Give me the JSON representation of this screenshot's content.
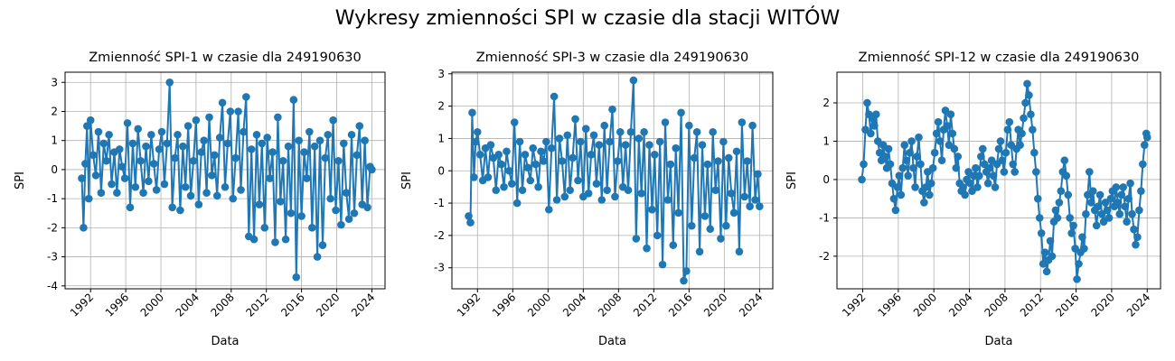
{
  "figure": {
    "suptitle": "Wykresy zmienności SPI w czasie dla stacji WITÓW",
    "line_color": "#1f77b4",
    "grid_color": "#b0b0b0"
  },
  "chart_data": [
    {
      "type": "line",
      "title": "Zmienność SPI-1 w czasie dla 249190630",
      "xlabel": "Data",
      "ylabel": "SPI",
      "xlim": [
        1989.1,
        2025.5
      ],
      "ylim": [
        -4.1,
        3.35
      ],
      "xticks": [
        1992,
        1996,
        2000,
        2004,
        2008,
        2012,
        2016,
        2020,
        2024
      ],
      "yticks": [
        -4,
        -3,
        -2,
        -1,
        0,
        1,
        2,
        3
      ],
      "grid": true,
      "marker": "circle",
      "series": [
        {
          "x": [
            1991.0,
            1991.2,
            1991.4,
            1991.6,
            1991.8,
            1992.0,
            1992.3,
            1992.6,
            1992.9,
            1993.2,
            1993.5,
            1993.8,
            1994.1,
            1994.4,
            1994.7,
            1995.0,
            1995.3,
            1995.6,
            1995.9,
            1996.2,
            1996.5,
            1996.8,
            1997.1,
            1997.4,
            1997.7,
            1998.0,
            1998.3,
            1998.6,
            1998.9,
            1999.2,
            1999.5,
            1999.8,
            2000.1,
            2000.4,
            2000.7,
            2001.0,
            2001.3,
            2001.6,
            2001.9,
            2002.2,
            2002.5,
            2002.8,
            2003.1,
            2003.4,
            2003.7,
            2004.0,
            2004.3,
            2004.6,
            2004.9,
            2005.2,
            2005.5,
            2005.8,
            2006.1,
            2006.4,
            2006.7,
            2007.0,
            2007.3,
            2007.6,
            2007.9,
            2008.2,
            2008.5,
            2008.8,
            2009.1,
            2009.4,
            2009.7,
            2010.0,
            2010.3,
            2010.6,
            2010.9,
            2011.2,
            2011.5,
            2011.8,
            2012.1,
            2012.4,
            2012.7,
            2013.0,
            2013.3,
            2013.6,
            2013.9,
            2014.2,
            2014.5,
            2014.8,
            2015.1,
            2015.4,
            2015.7,
            2016.0,
            2016.3,
            2016.6,
            2016.9,
            2017.2,
            2017.5,
            2017.8,
            2018.1,
            2018.4,
            2018.7,
            2019.0,
            2019.3,
            2019.6,
            2019.9,
            2020.2,
            2020.5,
            2020.8,
            2021.1,
            2021.4,
            2021.7,
            2022.0,
            2022.3,
            2022.6,
            2022.9,
            2023.2,
            2023.5,
            2023.8,
            2024.0
          ],
          "y": [
            -0.3,
            -2.0,
            0.2,
            1.5,
            -1.0,
            1.7,
            0.5,
            -0.2,
            1.3,
            -0.8,
            0.9,
            0.3,
            1.2,
            -0.5,
            0.6,
            -0.8,
            0.7,
            0.1,
            -0.3,
            1.6,
            -1.3,
            0.9,
            -0.6,
            1.4,
            0.3,
            -0.8,
            0.8,
            -0.4,
            1.2,
            0.2,
            -0.7,
            0.7,
            1.3,
            -0.5,
            0.9,
            3.0,
            -1.3,
            0.4,
            1.2,
            -1.4,
            0.8,
            -0.6,
            1.5,
            -0.9,
            0.3,
            1.7,
            -1.2,
            0.6,
            1.0,
            -0.8,
            1.8,
            -0.2,
            0.5,
            -0.9,
            1.1,
            2.3,
            -0.6,
            0.9,
            2.0,
            -1.0,
            0.4,
            2.0,
            -0.7,
            1.3,
            2.5,
            -2.3,
            0.7,
            -2.4,
            1.2,
            -1.2,
            0.9,
            -2.0,
            1.1,
            -0.3,
            0.6,
            -2.5,
            1.8,
            -1.1,
            0.3,
            -2.4,
            0.8,
            -1.5,
            2.4,
            -3.7,
            1.0,
            -1.6,
            0.6,
            -0.3,
            1.3,
            -2.0,
            0.8,
            -3.0,
            1.0,
            -2.6,
            0.4,
            1.2,
            -1.0,
            1.7,
            -1.4,
            0.3,
            -1.9,
            0.9,
            -0.8,
            -1.7,
            1.2,
            -1.5,
            0.5,
            1.5,
            -1.2,
            1.0,
            -1.3,
            0.1,
            0.0
          ]
        }
      ]
    },
    {
      "type": "line",
      "title": "Zmienność SPI-3 w czasie dla 249190630",
      "xlabel": "Data",
      "ylabel": "SPI",
      "xlim": [
        1989.1,
        2025.5
      ],
      "ylim": [
        -3.65,
        3.05
      ],
      "xticks": [
        1992,
        1996,
        2000,
        2004,
        2008,
        2012,
        2016,
        2020,
        2024
      ],
      "yticks": [
        -3,
        -2,
        -1,
        0,
        1,
        2,
        3
      ],
      "grid": true,
      "marker": "circle",
      "series": [
        {
          "x": [
            1991.0,
            1991.2,
            1991.4,
            1991.6,
            1991.8,
            1992.0,
            1992.3,
            1992.6,
            1992.9,
            1993.2,
            1993.5,
            1993.8,
            1994.1,
            1994.4,
            1994.7,
            1995.0,
            1995.3,
            1995.6,
            1995.9,
            1996.2,
            1996.5,
            1996.8,
            1997.1,
            1997.4,
            1997.7,
            1998.0,
            1998.3,
            1998.6,
            1998.9,
            1999.2,
            1999.5,
            1999.8,
            2000.1,
            2000.4,
            2000.7,
            2001.0,
            2001.3,
            2001.6,
            2001.9,
            2002.2,
            2002.5,
            2002.8,
            2003.1,
            2003.4,
            2003.7,
            2004.0,
            2004.3,
            2004.6,
            2004.9,
            2005.2,
            2005.5,
            2005.8,
            2006.1,
            2006.4,
            2006.7,
            2007.0,
            2007.3,
            2007.6,
            2007.9,
            2008.2,
            2008.5,
            2008.8,
            2009.1,
            2009.4,
            2009.7,
            2010.0,
            2010.3,
            2010.6,
            2010.9,
            2011.2,
            2011.5,
            2011.8,
            2012.1,
            2012.4,
            2012.7,
            2013.0,
            2013.3,
            2013.6,
            2013.9,
            2014.2,
            2014.5,
            2014.8,
            2015.1,
            2015.4,
            2015.7,
            2016.0,
            2016.3,
            2016.6,
            2016.9,
            2017.2,
            2017.5,
            2017.8,
            2018.1,
            2018.4,
            2018.7,
            2019.0,
            2019.3,
            2019.6,
            2019.9,
            2020.2,
            2020.5,
            2020.8,
            2021.1,
            2021.4,
            2021.7,
            2022.0,
            2022.3,
            2022.6,
            2022.9,
            2023.2,
            2023.5,
            2023.8,
            2024.0
          ],
          "y": [
            -1.4,
            -1.6,
            1.8,
            -0.2,
            0.9,
            1.2,
            0.5,
            -0.3,
            0.7,
            -0.2,
            0.8,
            0.4,
            -0.6,
            0.5,
            0.2,
            -0.5,
            0.6,
            0.0,
            -0.4,
            1.5,
            -1.0,
            0.9,
            -0.6,
            0.5,
            0.1,
            -0.3,
            0.7,
            0.2,
            -0.5,
            0.6,
            0.3,
            0.9,
            -1.2,
            0.7,
            2.3,
            -0.9,
            1.0,
            0.3,
            -0.8,
            1.1,
            -0.6,
            0.4,
            1.6,
            -0.3,
            0.9,
            -0.8,
            1.3,
            -0.7,
            0.5,
            1.1,
            -0.4,
            0.8,
            -0.9,
            1.4,
            -0.6,
            0.9,
            1.9,
            -0.8,
            0.3,
            1.2,
            -0.5,
            0.8,
            -0.6,
            1.2,
            2.8,
            -2.1,
            1.0,
            -0.7,
            1.2,
            -2.4,
            0.8,
            -1.2,
            0.5,
            -2.0,
            0.9,
            -2.9,
            1.5,
            -0.9,
            0.2,
            -2.3,
            0.7,
            -1.3,
            1.8,
            -3.4,
            -3.1,
            1.4,
            -1.7,
            0.4,
            1.2,
            -2.5,
            0.8,
            -1.4,
            0.2,
            -1.8,
            1.2,
            -0.6,
            0.3,
            -2.1,
            0.9,
            -1.7,
            0.4,
            -0.7,
            -1.3,
            0.6,
            -2.5,
            1.5,
            -0.8,
            0.3,
            -1.1,
            1.4,
            -0.9,
            -0.1,
            -1.1
          ]
        }
      ]
    },
    {
      "type": "line",
      "title": "Zmienność SPI-12 w czasie dla 249190630",
      "xlabel": "Data",
      "ylabel": "SPI",
      "xlim": [
        1989.1,
        2025.5
      ],
      "ylim": [
        -2.85,
        2.8
      ],
      "xticks": [
        1992,
        1996,
        2000,
        2004,
        2008,
        2012,
        2016,
        2020,
        2024
      ],
      "yticks": [
        -2,
        -1,
        0,
        1,
        2
      ],
      "grid": true,
      "marker": "circle",
      "series": [
        {
          "x": [
            1991.9,
            1992.1,
            1992.3,
            1992.5,
            1992.7,
            1992.9,
            1993.1,
            1993.3,
            1993.5,
            1993.7,
            1993.9,
            1994.1,
            1994.3,
            1994.5,
            1994.7,
            1994.9,
            1995.1,
            1995.3,
            1995.5,
            1995.7,
            1995.9,
            1996.1,
            1996.3,
            1996.5,
            1996.7,
            1996.9,
            1997.1,
            1997.3,
            1997.5,
            1997.7,
            1997.9,
            1998.1,
            1998.3,
            1998.5,
            1998.7,
            1998.9,
            1999.1,
            1999.3,
            1999.5,
            1999.7,
            1999.9,
            2000.1,
            2000.3,
            2000.5,
            2000.7,
            2000.9,
            2001.1,
            2001.3,
            2001.5,
            2001.7,
            2001.9,
            2002.1,
            2002.3,
            2002.5,
            2002.7,
            2002.9,
            2003.1,
            2003.3,
            2003.5,
            2003.7,
            2003.9,
            2004.1,
            2004.3,
            2004.5,
            2004.7,
            2004.9,
            2005.1,
            2005.3,
            2005.5,
            2005.7,
            2005.9,
            2006.1,
            2006.3,
            2006.5,
            2006.7,
            2006.9,
            2007.1,
            2007.3,
            2007.5,
            2007.7,
            2007.9,
            2008.1,
            2008.3,
            2008.5,
            2008.7,
            2008.9,
            2009.1,
            2009.3,
            2009.5,
            2009.7,
            2009.9,
            2010.1,
            2010.3,
            2010.5,
            2010.7,
            2010.9,
            2011.1,
            2011.3,
            2011.5,
            2011.7,
            2011.9,
            2012.1,
            2012.3,
            2012.5,
            2012.7,
            2012.9,
            2013.1,
            2013.3,
            2013.5,
            2013.7,
            2013.9,
            2014.1,
            2014.3,
            2014.5,
            2014.7,
            2014.9,
            2015.1,
            2015.3,
            2015.5,
            2015.7,
            2015.9,
            2016.1,
            2016.3,
            2016.5,
            2016.7,
            2016.9,
            2017.1,
            2017.3,
            2017.5,
            2017.7,
            2017.9,
            2018.1,
            2018.3,
            2018.5,
            2018.7,
            2018.9,
            2019.1,
            2019.3,
            2019.5,
            2019.7,
            2019.9,
            2020.1,
            2020.3,
            2020.5,
            2020.7,
            2020.9,
            2021.1,
            2021.3,
            2021.5,
            2021.7,
            2021.9,
            2022.1,
            2022.3,
            2022.5,
            2022.7,
            2022.9,
            2023.1,
            2023.3,
            2023.5,
            2023.7,
            2023.9,
            2024.0
          ],
          "y": [
            0.0,
            0.4,
            1.3,
            2.0,
            1.7,
            1.2,
            1.6,
            1.4,
            1.7,
            1.0,
            0.7,
            0.5,
            0.9,
            0.6,
            0.3,
            0.8,
            0.4,
            -0.1,
            -0.5,
            -0.8,
            -0.2,
            0.1,
            -0.4,
            0.3,
            0.9,
            0.5,
            0.1,
            0.7,
            1.0,
            0.3,
            -0.2,
            0.6,
            1.1,
            0.4,
            -0.3,
            -0.6,
            -0.2,
            0.2,
            -0.4,
            -0.1,
            0.3,
            0.7,
            1.2,
            1.5,
            1.0,
            0.5,
            1.3,
            1.8,
            1.4,
            0.9,
            1.7,
            1.2,
            0.8,
            0.3,
            0.6,
            -0.1,
            -0.3,
            -0.2,
            -0.4,
            0.0,
            0.2,
            -0.1,
            -0.3,
            0.1,
            0.3,
            -0.2,
            0.1,
            0.6,
            0.8,
            0.4,
            0.2,
            -0.1,
            0.3,
            0.5,
            0.1,
            -0.2,
            0.4,
            0.8,
            1.0,
            0.5,
            0.2,
            0.7,
            1.3,
            1.5,
            0.9,
            0.4,
            0.2,
            0.8,
            1.3,
            0.9,
            1.2,
            1.6,
            2.0,
            2.5,
            2.2,
            1.7,
            1.3,
            0.7,
            0.2,
            -0.5,
            -1.0,
            -1.4,
            -2.2,
            -1.9,
            -2.4,
            -2.1,
            -1.6,
            -2.0,
            -1.1,
            -0.8,
            -1.0,
            -0.6,
            -0.3,
            0.2,
            0.5,
            0.1,
            -0.4,
            -1.0,
            -1.4,
            -1.2,
            -1.8,
            -2.6,
            -2.2,
            -1.9,
            -1.5,
            -1.8,
            -0.9,
            -0.4,
            0.2,
            -0.6,
            -0.3,
            -0.8,
            -1.2,
            -0.7,
            -0.4,
            -0.9,
            -1.1,
            -0.6,
            -0.8,
            -1.0,
            -0.5,
            -0.3,
            -0.7,
            -0.2,
            -0.6,
            -0.9,
            -0.4,
            -0.2,
            -0.7,
            -1.1,
            -0.5,
            -0.1,
            -0.9,
            -1.3,
            -1.7,
            -1.5,
            -0.8,
            -0.3,
            0.4,
            0.9,
            1.2,
            1.1
          ]
        }
      ]
    }
  ]
}
